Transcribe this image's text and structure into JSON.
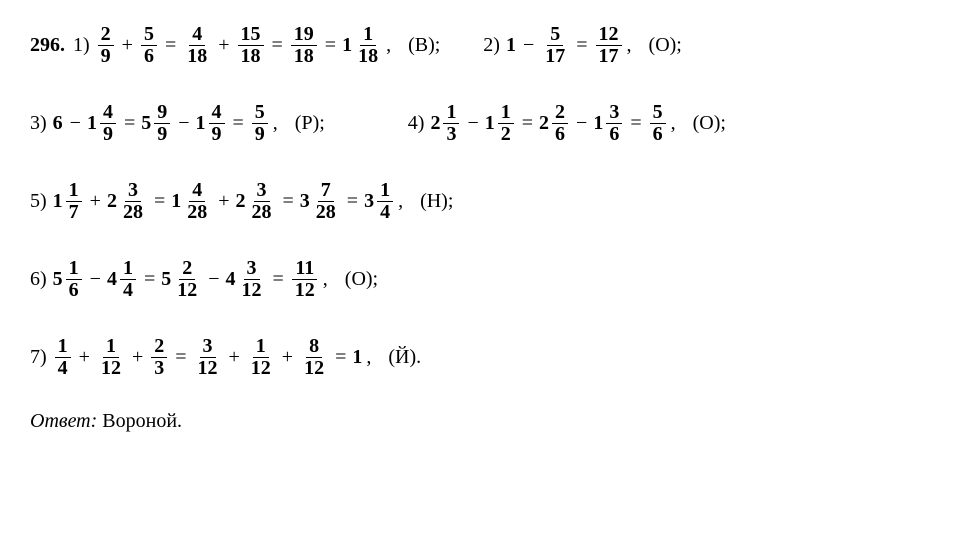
{
  "problemNumber": "296.",
  "answerLabel": "Ответ:",
  "answerValue": "Вороной.",
  "lines": {
    "l1a": {
      "idx": "1)",
      "a_n": "2",
      "a_d": "9",
      "b_n": "5",
      "b_d": "6",
      "c_n": "4",
      "c_d": "18",
      "d_n": "15",
      "d_d": "18",
      "e_n": "19",
      "e_d": "18",
      "f_w": "1",
      "f_n": "1",
      "f_d": "18",
      "letter": "(В);"
    },
    "l1b": {
      "idx": "2)",
      "a_w": "1",
      "b_n": "5",
      "b_d": "17",
      "c_n": "12",
      "c_d": "17",
      "letter": "(О);"
    },
    "l2a": {
      "idx": "3)",
      "a_w": "6",
      "b_w": "1",
      "b_n": "4",
      "b_d": "9",
      "c_w": "5",
      "c_n": "9",
      "c_d": "9",
      "d_w": "1",
      "d_n": "4",
      "d_d": "9",
      "e_n": "5",
      "e_d": "9",
      "letter": "(Р);"
    },
    "l2b": {
      "idx": "4)",
      "a_w": "2",
      "a_n": "1",
      "a_d": "3",
      "b_w": "1",
      "b_n": "1",
      "b_d": "2",
      "c_w": "2",
      "c_n": "2",
      "c_d": "6",
      "d_w": "1",
      "d_n": "3",
      "d_d": "6",
      "e_n": "5",
      "e_d": "6",
      "letter": "(О);"
    },
    "l3": {
      "idx": "5)",
      "a_w": "1",
      "a_n": "1",
      "a_d": "7",
      "b_w": "2",
      "b_n": "3",
      "b_d": "28",
      "c_w": "1",
      "c_n": "4",
      "c_d": "28",
      "d_w": "2",
      "d_n": "3",
      "d_d": "28",
      "e_w": "3",
      "e_n": "7",
      "e_d": "28",
      "f_w": "3",
      "f_n": "1",
      "f_d": "4",
      "letter": "(Н);"
    },
    "l4": {
      "idx": "6)",
      "a_w": "5",
      "a_n": "1",
      "a_d": "6",
      "b_w": "4",
      "b_n": "1",
      "b_d": "4",
      "c_w": "5",
      "c_n": "2",
      "c_d": "12",
      "d_w": "4",
      "d_n": "3",
      "d_d": "12",
      "e_n": "11",
      "e_d": "12",
      "letter": "(О);"
    },
    "l5": {
      "idx": "7)",
      "a_n": "1",
      "a_d": "4",
      "b_n": "1",
      "b_d": "12",
      "c_n": "2",
      "c_d": "3",
      "d_n": "3",
      "d_d": "12",
      "e_n": "1",
      "e_d": "12",
      "f_n": "8",
      "f_d": "12",
      "g_w": "1",
      "letter": "(Й)."
    }
  }
}
